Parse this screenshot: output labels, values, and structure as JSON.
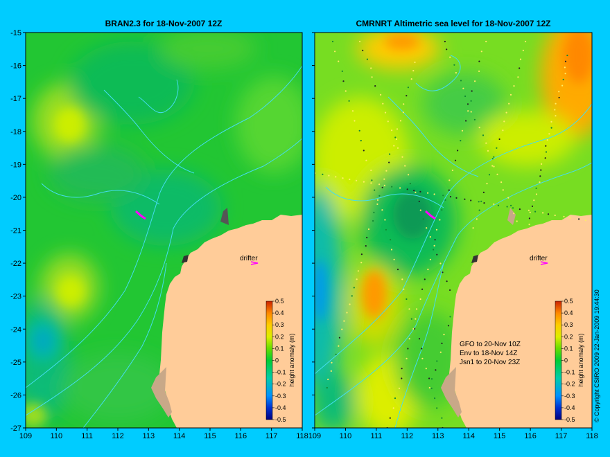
{
  "colors": {
    "background": "#00ccff",
    "land": "#ffcc99",
    "coast_shelf": "#c8a888",
    "contour": "#44ddee",
    "drifter": "#ff00ff"
  },
  "panels": [
    {
      "id": "bran",
      "title": "BRAN2.3 for 18-Nov-2007 12Z",
      "drifter_label": "drifter",
      "notes": []
    },
    {
      "id": "cmr",
      "title": "CMRNRT Altimetric sea level  for 18-Nov-2007 12Z",
      "drifter_label": "drifter",
      "notes": [
        "GFO to 20-Nov 10Z",
        "Env to 18-Nov 14Z",
        "Jsn1 to 20-Nov 23Z"
      ]
    }
  ],
  "axes": {
    "lon_ticks": [
      "109",
      "110",
      "111",
      "112",
      "113",
      "114",
      "115",
      "116",
      "117",
      "118"
    ],
    "lat_ticks": [
      "-15",
      "-16",
      "-17",
      "-18",
      "-19",
      "-20",
      "-21",
      "-22",
      "-23",
      "-24",
      "-25",
      "-26",
      "-27"
    ],
    "lon_range": [
      109,
      118
    ],
    "lat_range": [
      -27,
      -15
    ]
  },
  "colorbar": {
    "label": "height anomaly (m)",
    "ticks": [
      "0.5",
      "0.4",
      "0.3",
      "0.2",
      "0.1",
      "0",
      "-0.1",
      "-0.2",
      "-0.3",
      "-0.4",
      "-0.5"
    ],
    "range": [
      -0.5,
      0.5
    ],
    "colors": [
      "#000080",
      "#0030d0",
      "#0090ff",
      "#00ccaa",
      "#00cc33",
      "#33cc00",
      "#99dd00",
      "#ddee00",
      "#ffcc00",
      "#ff8800",
      "#cc2200"
    ]
  },
  "copyright": "© Copyright CSIRO 2009  22-Jan-2009 19:44:30"
}
